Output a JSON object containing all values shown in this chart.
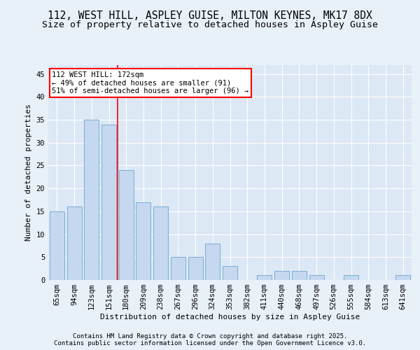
{
  "title1": "112, WEST HILL, ASPLEY GUISE, MILTON KEYNES, MK17 8DX",
  "title2": "Size of property relative to detached houses in Aspley Guise",
  "xlabel": "Distribution of detached houses by size in Aspley Guise",
  "ylabel": "Number of detached properties",
  "categories": [
    "65sqm",
    "94sqm",
    "123sqm",
    "151sqm",
    "180sqm",
    "209sqm",
    "238sqm",
    "267sqm",
    "296sqm",
    "324sqm",
    "353sqm",
    "382sqm",
    "411sqm",
    "440sqm",
    "468sqm",
    "497sqm",
    "526sqm",
    "555sqm",
    "584sqm",
    "613sqm",
    "641sqm"
  ],
  "values": [
    15,
    16,
    35,
    34,
    24,
    17,
    16,
    5,
    5,
    8,
    3,
    0,
    1,
    2,
    2,
    1,
    0,
    1,
    0,
    0,
    1
  ],
  "bar_color": "#c5d8f0",
  "bar_edge_color": "#7aadd4",
  "vline_pos": 3.5,
  "vline_color": "red",
  "annotation_box_text": "112 WEST HILL: 172sqm\n← 49% of detached houses are smaller (91)\n51% of semi-detached houses are larger (96) →",
  "annotation_box_color": "red",
  "annotation_text_color": "black",
  "ylim": [
    0,
    47
  ],
  "yticks": [
    0,
    5,
    10,
    15,
    20,
    25,
    30,
    35,
    40,
    45
  ],
  "bg_color": "#e8f0f8",
  "plot_bg_color": "#dce8f5",
  "grid_color": "white",
  "footer_text": "Contains HM Land Registry data © Crown copyright and database right 2025.\nContains public sector information licensed under the Open Government Licence v3.0.",
  "title_fontsize": 10.5,
  "subtitle_fontsize": 9.5,
  "axis_label_fontsize": 8,
  "tick_fontsize": 7.5,
  "annotation_fontsize": 7.5,
  "footer_fontsize": 6.5
}
